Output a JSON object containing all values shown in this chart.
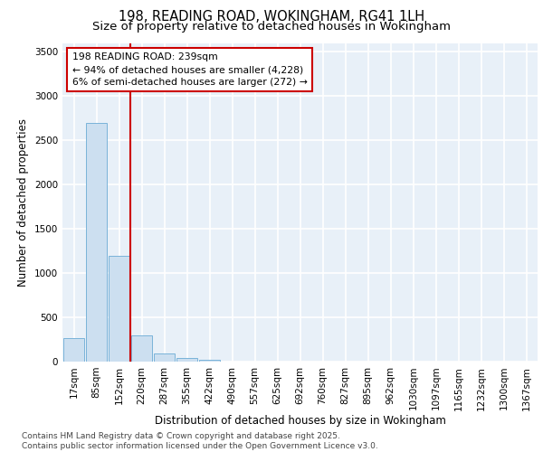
{
  "title_line1": "198, READING ROAD, WOKINGHAM, RG41 1LH",
  "title_line2": "Size of property relative to detached houses in Wokingham",
  "xlabel": "Distribution of detached houses by size in Wokingham",
  "ylabel": "Number of detached properties",
  "categories": [
    "17sqm",
    "85sqm",
    "152sqm",
    "220sqm",
    "287sqm",
    "355sqm",
    "422sqm",
    "490sqm",
    "557sqm",
    "625sqm",
    "692sqm",
    "760sqm",
    "827sqm",
    "895sqm",
    "962sqm",
    "1030sqm",
    "1097sqm",
    "1165sqm",
    "1232sqm",
    "1300sqm",
    "1367sqm"
  ],
  "values": [
    270,
    2700,
    1190,
    300,
    90,
    40,
    20,
    0,
    0,
    0,
    0,
    0,
    0,
    0,
    0,
    0,
    0,
    0,
    0,
    0,
    0
  ],
  "bar_color": "#ccdff0",
  "bar_edge_color": "#7ab3d9",
  "bg_color": "#e8f0f8",
  "grid_color": "#ffffff",
  "vline_x_pos": 2.5,
  "vline_color": "#cc0000",
  "annotation_text": "198 READING ROAD: 239sqm\n← 94% of detached houses are smaller (4,228)\n6% of semi-detached houses are larger (272) →",
  "annotation_box_color": "#cc0000",
  "ylim": [
    0,
    3600
  ],
  "yticks": [
    0,
    500,
    1000,
    1500,
    2000,
    2500,
    3000,
    3500
  ],
  "footnote": "Contains HM Land Registry data © Crown copyright and database right 2025.\nContains public sector information licensed under the Open Government Licence v3.0.",
  "title_fontsize": 10.5,
  "subtitle_fontsize": 9.5,
  "axis_label_fontsize": 8.5,
  "tick_fontsize": 7.5,
  "footnote_fontsize": 6.5
}
